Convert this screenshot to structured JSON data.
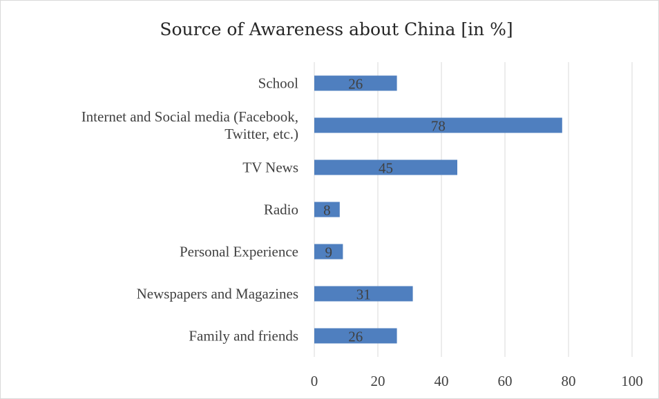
{
  "chart_data": {
    "type": "bar",
    "orientation": "horizontal",
    "title": "Source of Awareness about China [in %]",
    "categories": [
      "School",
      "Internet and Social media (Facebook, Twitter, etc.)",
      "TV News",
      "Radio",
      "Personal Experience",
      "Newspapers and Magazines",
      "Family and friends"
    ],
    "category_lines": [
      [
        "School"
      ],
      [
        "Internet and Social media (Facebook,",
        "Twitter, etc.)"
      ],
      [
        "TV News"
      ],
      [
        "Radio"
      ],
      [
        "Personal Experience"
      ],
      [
        "Newspapers and Magazines"
      ],
      [
        "Family and friends"
      ]
    ],
    "values": [
      26,
      78,
      45,
      8,
      9,
      31,
      26
    ],
    "xlim": [
      0,
      100
    ],
    "xticks": [
      0,
      20,
      40,
      60,
      80,
      100
    ],
    "xlabel": "",
    "ylabel": "",
    "grid": "vertical",
    "legend": "none",
    "bar_color": "#4f7fbf",
    "grid_color": "#d9d9d9"
  }
}
